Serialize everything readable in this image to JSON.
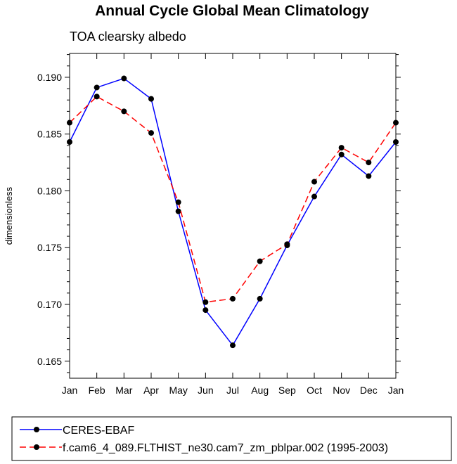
{
  "chart_data": {
    "type": "line",
    "title": "Annual Cycle Global Mean Climatology",
    "subtitle": "TOA clearsky albedo",
    "xlabel": "",
    "ylabel": "dimensionless",
    "categories": [
      "Jan",
      "Feb",
      "Mar",
      "Apr",
      "May",
      "Jun",
      "Jul",
      "Aug",
      "Sep",
      "Oct",
      "Nov",
      "Dec",
      "Jan"
    ],
    "ylim": [
      0.1635,
      0.1921
    ],
    "yticks": [
      "0.165",
      "0.170",
      "0.175",
      "0.180",
      "0.185",
      "0.190"
    ],
    "ytick_values": [
      0.165,
      0.17,
      0.175,
      0.18,
      0.185,
      0.19
    ],
    "series": [
      {
        "name": "CERES-EBAF",
        "color": "#0000ff",
        "dash": "solid",
        "values": [
          0.1843,
          0.1891,
          0.1899,
          0.1881,
          0.1782,
          0.1695,
          0.1664,
          0.1705,
          0.1752,
          0.1795,
          0.1832,
          0.1813,
          0.1843
        ]
      },
      {
        "name": "f.cam6_4_089.FLTHIST_ne30.cam7_zm_pblpar.002 (1995-2003)",
        "color": "#ff0000",
        "dash": "dashed",
        "values": [
          0.186,
          0.1883,
          0.187,
          0.1851,
          0.179,
          0.1702,
          0.1705,
          0.1738,
          0.1753,
          0.1808,
          0.1838,
          0.1825,
          0.186
        ]
      }
    ],
    "legend_position": "bottom"
  }
}
